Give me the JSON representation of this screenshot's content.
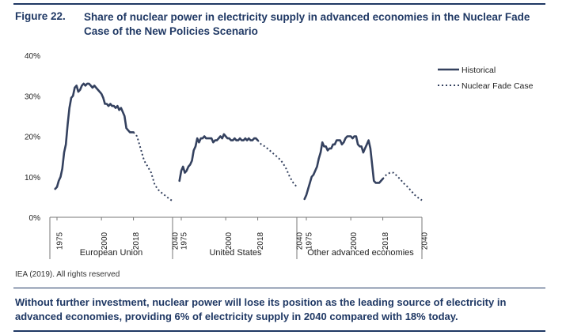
{
  "figure": {
    "label": "Figure 22.",
    "title": "Share of nuclear power in electricity supply in advanced economies in the Nuclear Fade Case of the New Policies Scenario"
  },
  "source": "IEA (2019). All rights reserved",
  "summary": "Without further investment, nuclear power will lose its position as the leading source of electricity in advanced economies, providing 6% of electricity supply in 2040 compared with 18% today.",
  "colors": {
    "series": "#34415f",
    "title": "#1f3864"
  },
  "chart_data": {
    "type": "line",
    "ylim": [
      0,
      40
    ],
    "yticks": [
      0,
      10,
      20,
      30,
      40
    ],
    "ytick_labels": [
      "0%",
      "10%",
      "20%",
      "30%",
      "40%"
    ],
    "xlim": [
      1971,
      2040
    ],
    "xticks": [
      1975,
      2000,
      2018,
      2040
    ],
    "grid": false,
    "legend": {
      "placement": "top-right",
      "entries": [
        {
          "label": "Historical",
          "style": "solid"
        },
        {
          "label": "Nuclear Fade Case",
          "style": "dotted"
        }
      ]
    },
    "panels": [
      {
        "name": "European Union",
        "historical": {
          "x": [
            1974,
            1975,
            1976,
            1977,
            1978,
            1979,
            1980,
            1981,
            1982,
            1983,
            1984,
            1985,
            1986,
            1987,
            1988,
            1989,
            1990,
            1991,
            1992,
            1993,
            1994,
            1995,
            1996,
            1997,
            1998,
            1999,
            2000,
            2001,
            2002,
            2003,
            2004,
            2005,
            2006,
            2007,
            2008,
            2009,
            2010,
            2011,
            2012,
            2013,
            2014,
            2015,
            2016,
            2017,
            2018
          ],
          "y": [
            7,
            7.5,
            9,
            10,
            12,
            16,
            18,
            23,
            27,
            29.5,
            30,
            32,
            32.5,
            31,
            31.5,
            32.5,
            33,
            32.5,
            33,
            33,
            32.5,
            32,
            32.5,
            32,
            31.5,
            31,
            30.5,
            29.5,
            28,
            28,
            27.5,
            28,
            27.5,
            27.5,
            27,
            27.5,
            26.5,
            27,
            26,
            25,
            22,
            21.5,
            21,
            21,
            21
          ]
        },
        "projection": {
          "x": [
            2018,
            2020,
            2022,
            2024,
            2026,
            2028,
            2030,
            2032,
            2034,
            2036,
            2038,
            2040
          ],
          "y": [
            21,
            20,
            17,
            14,
            12.5,
            11,
            8,
            6.8,
            6,
            5.3,
            4.6,
            4
          ]
        }
      },
      {
        "name": "United States",
        "historical": {
          "x": [
            1974,
            1975,
            1976,
            1977,
            1978,
            1979,
            1980,
            1981,
            1982,
            1983,
            1984,
            1985,
            1986,
            1987,
            1988,
            1989,
            1990,
            1991,
            1992,
            1993,
            1994,
            1995,
            1996,
            1997,
            1998,
            1999,
            2000,
            2001,
            2002,
            2003,
            2004,
            2005,
            2006,
            2007,
            2008,
            2009,
            2010,
            2011,
            2012,
            2013,
            2014,
            2015,
            2016,
            2017,
            2018
          ],
          "y": [
            9,
            11.5,
            12.5,
            11,
            11.5,
            12.5,
            13,
            14,
            16.5,
            17.5,
            19.5,
            18.5,
            19.5,
            19.5,
            20,
            19.5,
            19.5,
            19.5,
            19.5,
            18.5,
            19,
            19,
            19.5,
            20,
            19.5,
            20.5,
            20,
            19.5,
            19.5,
            19,
            19,
            19.5,
            19,
            19,
            19.5,
            19,
            19,
            19.5,
            19,
            19.5,
            19,
            19,
            19.5,
            19.5,
            19
          ]
        },
        "projection": {
          "x": [
            2018,
            2020,
            2022,
            2024,
            2026,
            2028,
            2030,
            2032,
            2034,
            2036,
            2038,
            2040
          ],
          "y": [
            19,
            18,
            17.5,
            16.8,
            16,
            15.3,
            14.5,
            13.5,
            12,
            10,
            8.5,
            7.5
          ]
        }
      },
      {
        "name": "Other advanced economies",
        "historical": {
          "x": [
            1974,
            1975,
            1976,
            1977,
            1978,
            1979,
            1980,
            1981,
            1982,
            1983,
            1984,
            1985,
            1986,
            1987,
            1988,
            1989,
            1990,
            1991,
            1992,
            1993,
            1994,
            1995,
            1996,
            1997,
            1998,
            1999,
            2000,
            2001,
            2002,
            2003,
            2004,
            2005,
            2006,
            2007,
            2008,
            2009,
            2010,
            2011,
            2012,
            2013,
            2014,
            2015,
            2016,
            2017,
            2018
          ],
          "y": [
            4.5,
            5.5,
            7,
            8.5,
            10,
            10.5,
            11.5,
            12.5,
            14.5,
            16,
            18.5,
            17.5,
            17.5,
            16.5,
            17,
            17,
            18,
            18,
            19,
            19,
            19,
            18,
            18.5,
            19.5,
            20,
            20,
            20,
            19.5,
            20,
            20,
            18,
            17.5,
            17.5,
            16,
            17,
            18,
            19,
            17,
            13,
            9,
            8.5,
            8.5,
            8.5,
            9,
            9.5
          ]
        },
        "projection": {
          "x": [
            2018,
            2020,
            2022,
            2024,
            2026,
            2028,
            2030,
            2032,
            2034,
            2036,
            2038,
            2040
          ],
          "y": [
            9.5,
            10.5,
            11,
            11,
            10.2,
            9.3,
            8.3,
            7.5,
            6.5,
            5.5,
            4.8,
            4.2
          ]
        }
      }
    ]
  }
}
